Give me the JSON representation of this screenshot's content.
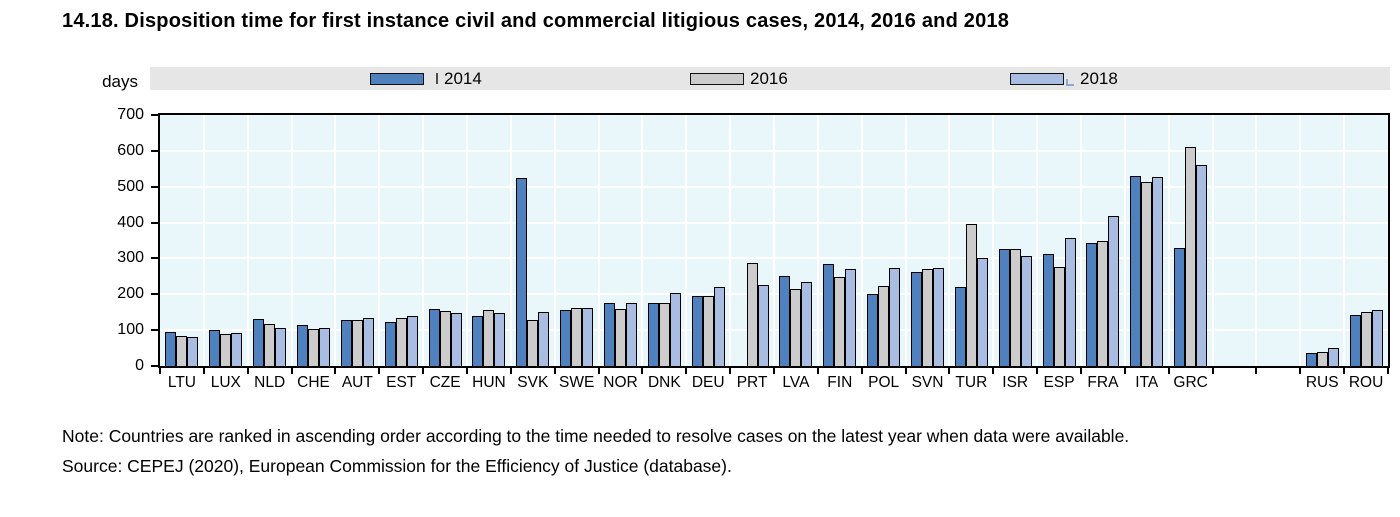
{
  "note": "Note: Countries are ranked in ascending order according to the time needed to resolve cases on the latest year when data were available.",
  "source": "Source: CEPEJ (2020), European Commission for the Efficiency of Justice (database).",
  "colors": {
    "series_2014": "#4e81bd",
    "series_2016": "#cccccc",
    "series_2018": "#a9bce2",
    "plot_background": "#e9f7fa",
    "gridline": "#ffffff",
    "legend_background": "#e6e6e6",
    "axis": "#000000"
  },
  "chart_data": {
    "type": "bar",
    "title": "14.18. Disposition time for first instance civil and commercial litigious cases, 2014, 2016 and 2018",
    "unit_label": "days",
    "categories": [
      "LTU",
      "LUX",
      "NLD",
      "CHE",
      "AUT",
      "EST",
      "CZE",
      "HUN",
      "SVK",
      "SWE",
      "NOR",
      "DNK",
      "DEU",
      "PRT",
      "LVA",
      "FIN",
      "POL",
      "SVN",
      "TUR",
      "ISR",
      "ESP",
      "FRA",
      "ITA",
      "GRC",
      "",
      "",
      "RUS",
      "ROU"
    ],
    "series": [
      {
        "name": "2014",
        "color": "#4e81bd",
        "values": [
          95,
          100,
          130,
          113,
          127,
          122,
          159,
          140,
          524,
          155,
          175,
          176,
          196,
          null,
          252,
          285,
          201,
          262,
          220,
          327,
          313,
          342,
          530,
          330,
          null,
          null,
          35,
          142
        ]
      },
      {
        "name": "2016",
        "color": "#cccccc",
        "values": [
          85,
          88,
          117,
          104,
          129,
          134,
          153,
          156,
          129,
          163,
          160,
          177,
          194,
          287,
          214,
          248,
          224,
          270,
          395,
          327,
          276,
          348,
          514,
          610,
          null,
          null,
          40,
          150
        ]
      },
      {
        "name": "2018",
        "color": "#a9bce2",
        "values": [
          80,
          91,
          107,
          107,
          135,
          140,
          147,
          148,
          151,
          163,
          175,
          204,
          219,
          226,
          234,
          271,
          272,
          274,
          300,
          308,
          356,
          418,
          527,
          560,
          null,
          null,
          50,
          156
        ]
      }
    ],
    "ylim": [
      0,
      700
    ],
    "ytick_interval": 100,
    "grid": true,
    "legend_position": "top"
  }
}
